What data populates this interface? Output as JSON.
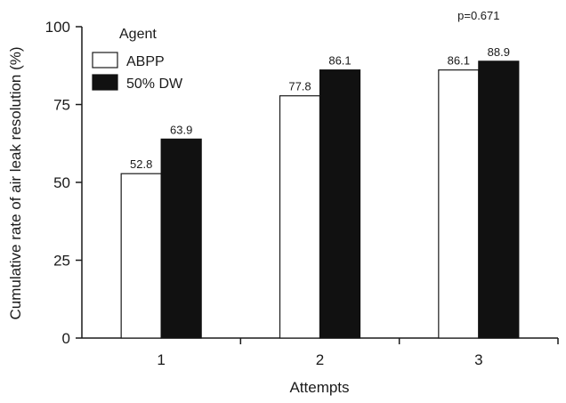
{
  "chart_data": {
    "type": "bar",
    "xlabel": "Attempts",
    "ylabel": "Cumulative rate of air leak resolution (%)",
    "categories": [
      "1",
      "2",
      "3"
    ],
    "ylim": [
      0,
      100
    ],
    "yticks": [
      0,
      25,
      50,
      75,
      100
    ],
    "legend_title": "Agent",
    "legend_position": "top-left",
    "grid": false,
    "series": [
      {
        "name": "ABPP",
        "values": [
          52.8,
          77.8,
          86.1
        ],
        "color": "#ffffff",
        "value_labels": [
          "52.8",
          "77.8",
          "86.1"
        ]
      },
      {
        "name": "50% DW",
        "values": [
          63.9,
          86.1,
          88.9
        ],
        "color": "#111111",
        "value_labels": [
          "63.9",
          "86.1",
          "88.9"
        ]
      }
    ],
    "annotations": [
      {
        "text": "p=0.671",
        "category": "3"
      }
    ]
  }
}
